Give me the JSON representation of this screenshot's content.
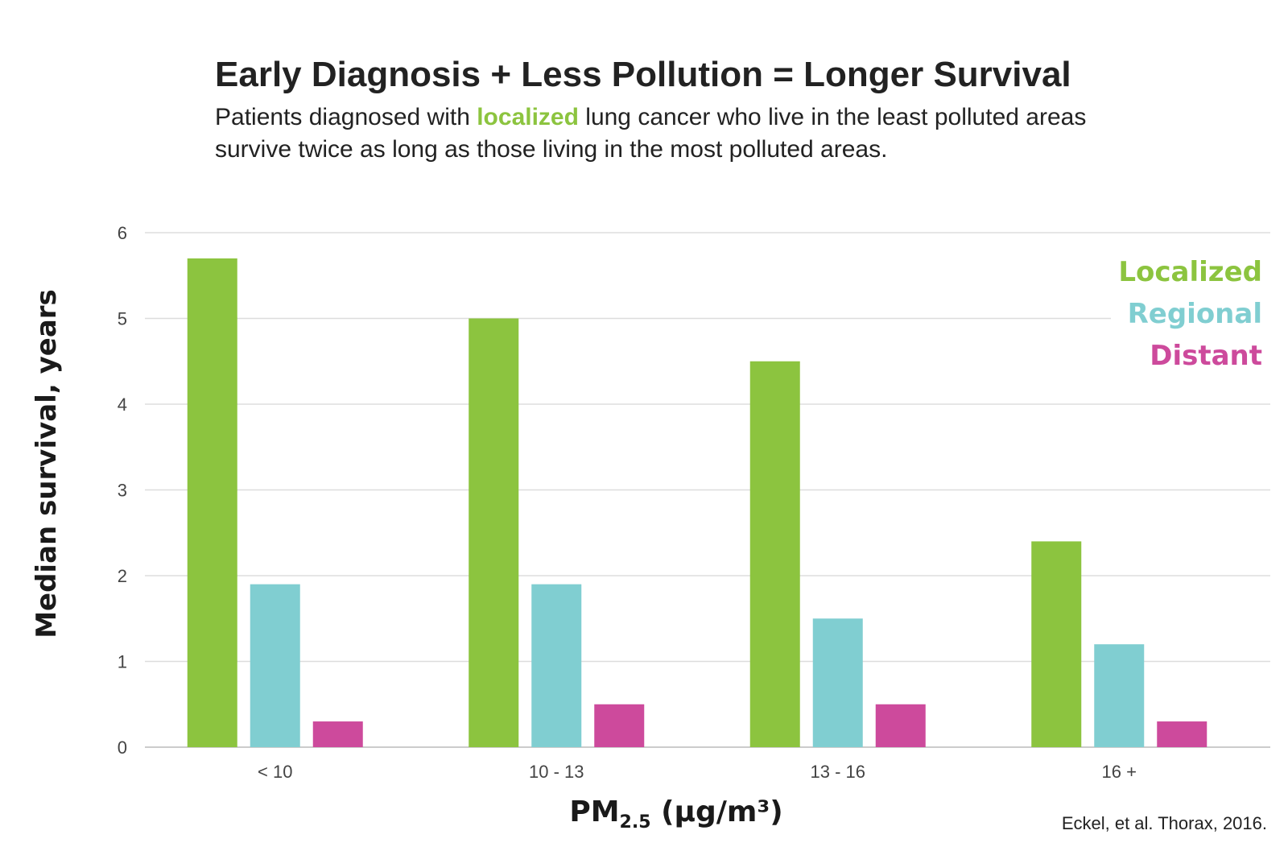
{
  "header": {
    "title": "Early Diagnosis + Less Pollution  = Longer Survival",
    "subtitle_before": "Patients diagnosed with ",
    "subtitle_highlight": "localized",
    "subtitle_after": " lung cancer who live in the least polluted areas survive twice as long as those living in the most polluted areas."
  },
  "source": "Eckel, et al. Thorax, 2016.",
  "chart_data": {
    "type": "bar",
    "title": "Early Diagnosis + Less Pollution  = Longer Survival",
    "ylabel": "Median survival, years",
    "xlabel_main": "PM",
    "xlabel_sub": "2.5",
    "xlabel_unit": " (µg/m³)",
    "categories": [
      "< 10",
      "10 - 13",
      "13 - 16",
      "16 +"
    ],
    "ylim": [
      0,
      6
    ],
    "yticks": [
      "0",
      "1",
      "2",
      "3",
      "4",
      "5",
      "6"
    ],
    "grid": true,
    "legend_position": "top-right",
    "series": [
      {
        "name": "Localized",
        "color": "#8cc43f",
        "values": [
          5.7,
          5.0,
          4.5,
          2.4
        ]
      },
      {
        "name": "Regional",
        "color": "#80ced1",
        "values": [
          1.9,
          1.9,
          1.5,
          1.2
        ]
      },
      {
        "name": "Distant",
        "color": "#cd4a9c",
        "values": [
          0.3,
          0.5,
          0.5,
          0.3
        ]
      }
    ]
  }
}
